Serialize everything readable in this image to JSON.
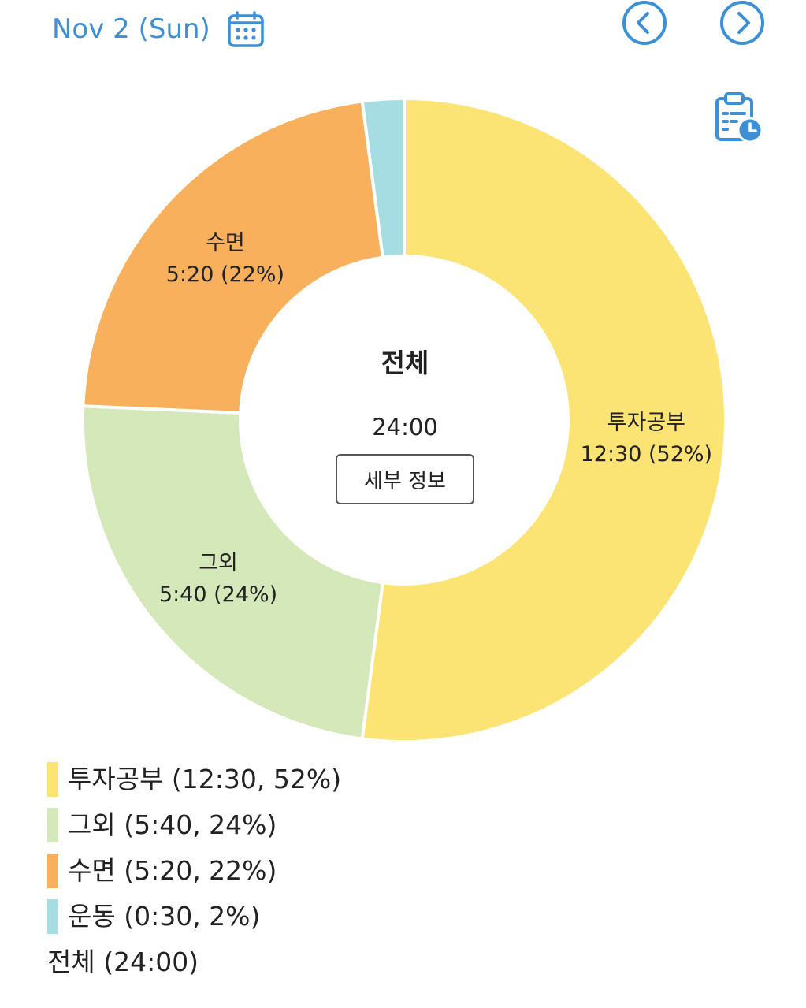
{
  "header": {
    "date": "Nov 2 (Sun)",
    "calendar_icon": "calendar-icon",
    "prev_icon": "chevron-left-icon",
    "next_icon": "chevron-right-icon",
    "timelog_icon": "clipboard-clock-icon",
    "accent_color": "#3d8fd6"
  },
  "center": {
    "title": "전체",
    "total": "24:00",
    "detail_button": "세부 정보"
  },
  "chart_data": {
    "type": "pie",
    "donut": true,
    "series": [
      {
        "name": "투자공부",
        "value": 12.5,
        "time": "12:30",
        "percent": 52,
        "color": "#fbe374",
        "label_line1": "투자공부",
        "label_line2": "12:30 (52%)"
      },
      {
        "name": "그외",
        "value": 5.6667,
        "time": "5:40",
        "percent": 24,
        "color": "#d4e8b9",
        "label_line1": "그외",
        "label_line2": "5:40 (24%)"
      },
      {
        "name": "수면",
        "value": 5.3333,
        "time": "5:20",
        "percent": 22,
        "color": "#f8b05d",
        "label_line1": "수면",
        "label_line2": "5:20 (22%)"
      },
      {
        "name": "운동",
        "value": 0.5,
        "time": "0:30",
        "percent": 2,
        "color": "#a6dde3",
        "label_line1": "",
        "label_line2": ""
      }
    ]
  },
  "legend": {
    "items": [
      {
        "text": "투자공부 (12:30, 52%)",
        "color": "#fbe374"
      },
      {
        "text": "그외 (5:40, 24%)",
        "color": "#d4e8b9"
      },
      {
        "text": "수면 (5:20, 22%)",
        "color": "#f8b05d"
      },
      {
        "text": "운동 (0:30, 2%)",
        "color": "#a6dde3"
      }
    ],
    "total": "전체 (24:00)"
  }
}
